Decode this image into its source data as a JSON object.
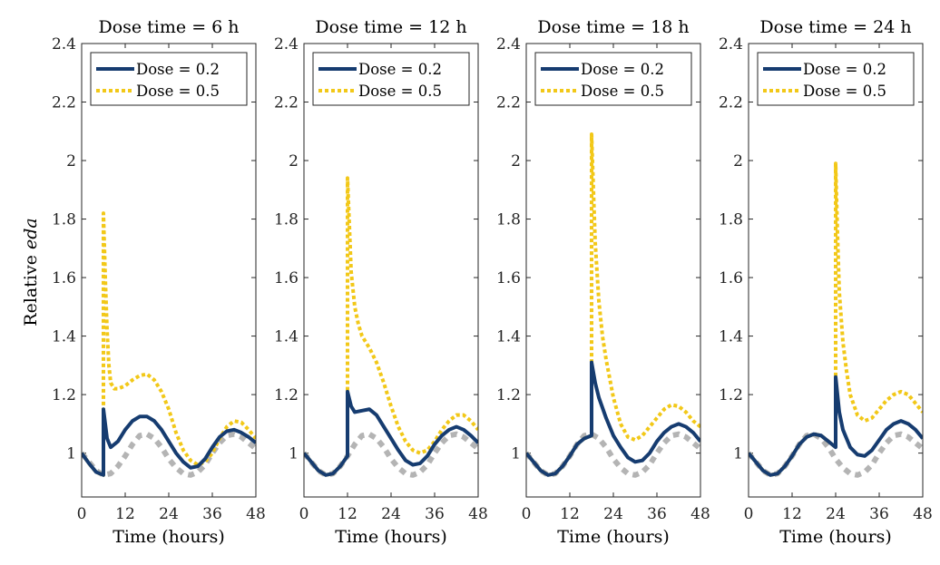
{
  "figure": {
    "ylabel_prefix": "Relative ",
    "ylabel_italic": "eda"
  },
  "colors": {
    "dose_0_2": "#163C70",
    "dose_0_5": "#F2C818",
    "baseline": "#B4B4B4"
  },
  "chart_data": [
    {
      "type": "line",
      "title": "Dose time = 6 h",
      "dose_time": 6,
      "xlabel": "Time (hours)",
      "ylabel": "Relative eda",
      "xlim": [
        0,
        48
      ],
      "ylim": [
        0.85,
        2.4
      ],
      "x_ticks": [
        "0",
        "12",
        "24",
        "36",
        "48"
      ],
      "y_ticks": [
        "1",
        "1.2",
        "1.4",
        "1.6",
        "1.8",
        "2",
        "2.2",
        "2.4"
      ],
      "legend": [
        "Dose = 0.2",
        "Dose = 0.5"
      ],
      "legend_position": "top",
      "series": [
        {
          "name": "Dose = 0.2",
          "style": "solid",
          "x": [
            0,
            2,
            4,
            6,
            6,
            7,
            8,
            10,
            12,
            14,
            16,
            18,
            20,
            22,
            24,
            26,
            28,
            30,
            32,
            34,
            36,
            38,
            40,
            42,
            44,
            46,
            48
          ],
          "y": [
            1.0,
            0.965,
            0.935,
            0.925,
            1.15,
            1.05,
            1.02,
            1.04,
            1.08,
            1.11,
            1.125,
            1.125,
            1.11,
            1.08,
            1.04,
            1.0,
            0.97,
            0.95,
            0.955,
            0.98,
            1.02,
            1.055,
            1.075,
            1.08,
            1.07,
            1.055,
            1.035
          ]
        },
        {
          "name": "Dose = 0.5",
          "style": "dotted",
          "x": [
            0,
            2,
            4,
            6,
            6,
            6.5,
            7,
            7.5,
            8,
            9,
            10,
            12,
            14,
            16,
            18,
            20,
            22,
            24,
            26,
            28,
            30,
            32,
            34,
            36,
            38,
            40,
            42,
            44,
            46,
            48
          ],
          "y": [
            1.0,
            0.965,
            0.935,
            0.925,
            1.82,
            1.6,
            1.42,
            1.3,
            1.24,
            1.22,
            1.22,
            1.23,
            1.25,
            1.265,
            1.27,
            1.25,
            1.21,
            1.15,
            1.07,
            1.01,
            0.975,
            0.96,
            0.97,
            1.0,
            1.05,
            1.09,
            1.11,
            1.105,
            1.08,
            1.05
          ]
        },
        {
          "style": "dotted",
          "x": [
            0,
            2,
            4,
            6,
            8,
            10,
            12,
            14,
            16,
            18,
            20,
            22,
            24,
            26,
            28,
            30,
            32,
            34,
            36,
            38,
            40,
            42,
            44,
            46,
            48
          ],
          "y": [
            1.0,
            0.97,
            0.94,
            0.925,
            0.93,
            0.955,
            0.99,
            1.03,
            1.06,
            1.065,
            1.05,
            1.02,
            0.98,
            0.95,
            0.93,
            0.925,
            0.935,
            0.96,
            1.0,
            1.035,
            1.06,
            1.065,
            1.055,
            1.035,
            1.015
          ]
        }
      ]
    },
    {
      "type": "line",
      "title": "Dose time = 12 h",
      "dose_time": 12,
      "xlabel": "Time (hours)",
      "xlim": [
        0,
        48
      ],
      "ylim": [
        0.85,
        2.4
      ],
      "x_ticks": [
        "0",
        "12",
        "24",
        "36",
        "48"
      ],
      "y_ticks": [
        "1",
        "1.2",
        "1.4",
        "1.6",
        "1.8",
        "2",
        "2.2",
        "2.4"
      ],
      "legend": [
        "Dose = 0.2",
        "Dose = 0.5"
      ],
      "legend_position": "top",
      "series": [
        {
          "name": "Dose = 0.2",
          "style": "solid",
          "x": [
            0,
            2,
            4,
            6,
            8,
            10,
            12,
            12,
            13,
            14,
            16,
            18,
            20,
            22,
            24,
            26,
            28,
            30,
            32,
            34,
            36,
            38,
            40,
            42,
            44,
            46,
            48
          ],
          "y": [
            1.0,
            0.97,
            0.94,
            0.925,
            0.93,
            0.955,
            0.99,
            1.21,
            1.16,
            1.14,
            1.145,
            1.15,
            1.13,
            1.09,
            1.05,
            1.01,
            0.975,
            0.96,
            0.965,
            0.99,
            1.03,
            1.06,
            1.08,
            1.09,
            1.08,
            1.06,
            1.035
          ]
        },
        {
          "name": "Dose = 0.5",
          "style": "dotted",
          "x": [
            0,
            2,
            4,
            6,
            8,
            10,
            12,
            12,
            12.5,
            13,
            14,
            15,
            16,
            18,
            20,
            22,
            24,
            26,
            28,
            30,
            32,
            34,
            36,
            38,
            40,
            42,
            44,
            46,
            48
          ],
          "y": [
            1.0,
            0.97,
            0.94,
            0.925,
            0.93,
            0.955,
            0.99,
            1.94,
            1.78,
            1.62,
            1.5,
            1.44,
            1.4,
            1.36,
            1.31,
            1.24,
            1.16,
            1.09,
            1.04,
            1.01,
            1.0,
            1.01,
            1.04,
            1.08,
            1.11,
            1.13,
            1.13,
            1.11,
            1.08
          ]
        },
        {
          "style": "dotted",
          "x": [
            0,
            2,
            4,
            6,
            8,
            10,
            12,
            14,
            16,
            18,
            20,
            22,
            24,
            26,
            28,
            30,
            32,
            34,
            36,
            38,
            40,
            42,
            44,
            46,
            48
          ],
          "y": [
            1.0,
            0.97,
            0.94,
            0.925,
            0.93,
            0.955,
            0.99,
            1.03,
            1.06,
            1.065,
            1.05,
            1.02,
            0.98,
            0.95,
            0.93,
            0.925,
            0.935,
            0.96,
            1.0,
            1.035,
            1.06,
            1.065,
            1.055,
            1.035,
            1.015
          ]
        }
      ]
    },
    {
      "type": "line",
      "title": "Dose time = 18 h",
      "dose_time": 18,
      "xlabel": "Time (hours)",
      "xlim": [
        0,
        48
      ],
      "ylim": [
        0.85,
        2.4
      ],
      "x_ticks": [
        "0",
        "12",
        "24",
        "36",
        "48"
      ],
      "y_ticks": [
        "1",
        "1.2",
        "1.4",
        "1.6",
        "1.8",
        "2",
        "2.2",
        "2.4"
      ],
      "legend": [
        "Dose = 0.2",
        "Dose = 0.5"
      ],
      "legend_position": "top",
      "series": [
        {
          "name": "Dose = 0.2",
          "style": "solid",
          "x": [
            0,
            2,
            4,
            6,
            8,
            10,
            12,
            14,
            16,
            18,
            18,
            19,
            20,
            22,
            24,
            26,
            28,
            30,
            32,
            34,
            36,
            38,
            40,
            42,
            44,
            46,
            48
          ],
          "y": [
            1.0,
            0.97,
            0.94,
            0.925,
            0.93,
            0.955,
            0.99,
            1.03,
            1.05,
            1.06,
            1.31,
            1.24,
            1.19,
            1.12,
            1.06,
            1.02,
            0.985,
            0.97,
            0.975,
            1.0,
            1.04,
            1.07,
            1.09,
            1.1,
            1.09,
            1.07,
            1.04
          ]
        },
        {
          "name": "Dose = 0.5",
          "style": "dotted",
          "x": [
            0,
            2,
            4,
            6,
            8,
            10,
            12,
            14,
            16,
            18,
            18,
            18.5,
            19,
            20,
            21,
            22,
            24,
            26,
            28,
            30,
            32,
            34,
            36,
            38,
            40,
            42,
            44,
            46,
            48
          ],
          "y": [
            1.0,
            0.97,
            0.94,
            0.925,
            0.93,
            0.955,
            0.99,
            1.03,
            1.05,
            1.06,
            2.09,
            1.9,
            1.72,
            1.52,
            1.4,
            1.32,
            1.19,
            1.1,
            1.055,
            1.045,
            1.06,
            1.09,
            1.12,
            1.15,
            1.165,
            1.16,
            1.14,
            1.11,
            1.09
          ]
        },
        {
          "style": "dotted",
          "x": [
            0,
            2,
            4,
            6,
            8,
            10,
            12,
            14,
            16,
            18,
            20,
            22,
            24,
            26,
            28,
            30,
            32,
            34,
            36,
            38,
            40,
            42,
            44,
            46,
            48
          ],
          "y": [
            1.0,
            0.97,
            0.94,
            0.925,
            0.93,
            0.955,
            0.99,
            1.03,
            1.06,
            1.065,
            1.05,
            1.02,
            0.98,
            0.95,
            0.93,
            0.925,
            0.935,
            0.96,
            1.0,
            1.035,
            1.06,
            1.065,
            1.055,
            1.035,
            1.015
          ]
        }
      ]
    },
    {
      "type": "line",
      "title": "Dose time = 24 h",
      "dose_time": 24,
      "xlabel": "Time (hours)",
      "xlim": [
        0,
        48
      ],
      "ylim": [
        0.85,
        2.4
      ],
      "x_ticks": [
        "0",
        "12",
        "24",
        "36",
        "48"
      ],
      "y_ticks": [
        "1",
        "1.2",
        "1.4",
        "1.6",
        "1.8",
        "2",
        "2.2",
        "2.4"
      ],
      "legend": [
        "Dose = 0.2",
        "Dose = 0.5"
      ],
      "legend_position": "top",
      "series": [
        {
          "name": "Dose = 0.2",
          "style": "solid",
          "x": [
            0,
            2,
            4,
            6,
            8,
            10,
            12,
            14,
            16,
            18,
            20,
            22,
            24,
            24,
            25,
            26,
            28,
            30,
            32,
            34,
            36,
            38,
            40,
            42,
            44,
            46,
            48
          ],
          "y": [
            1.0,
            0.97,
            0.94,
            0.925,
            0.93,
            0.955,
            0.99,
            1.03,
            1.055,
            1.065,
            1.06,
            1.04,
            1.02,
            1.26,
            1.14,
            1.08,
            1.02,
            0.995,
            0.99,
            1.01,
            1.045,
            1.08,
            1.1,
            1.11,
            1.1,
            1.08,
            1.05
          ]
        },
        {
          "name": "Dose = 0.5",
          "style": "dotted",
          "x": [
            0,
            2,
            4,
            6,
            8,
            10,
            12,
            14,
            16,
            18,
            20,
            22,
            24,
            24,
            24.5,
            25,
            26,
            27,
            28,
            30,
            32,
            34,
            36,
            38,
            40,
            42,
            44,
            46,
            48
          ],
          "y": [
            1.0,
            0.97,
            0.94,
            0.925,
            0.93,
            0.955,
            0.99,
            1.03,
            1.055,
            1.065,
            1.06,
            1.04,
            1.02,
            1.99,
            1.75,
            1.55,
            1.38,
            1.28,
            1.2,
            1.13,
            1.11,
            1.12,
            1.15,
            1.18,
            1.2,
            1.21,
            1.2,
            1.17,
            1.14
          ]
        },
        {
          "style": "dotted",
          "x": [
            0,
            2,
            4,
            6,
            8,
            10,
            12,
            14,
            16,
            18,
            20,
            22,
            24,
            26,
            28,
            30,
            32,
            34,
            36,
            38,
            40,
            42,
            44,
            46,
            48
          ],
          "y": [
            1.0,
            0.97,
            0.94,
            0.925,
            0.93,
            0.955,
            0.99,
            1.03,
            1.06,
            1.065,
            1.05,
            1.02,
            0.98,
            0.95,
            0.93,
            0.925,
            0.935,
            0.96,
            1.0,
            1.035,
            1.06,
            1.065,
            1.055,
            1.035,
            1.015
          ]
        }
      ]
    }
  ]
}
